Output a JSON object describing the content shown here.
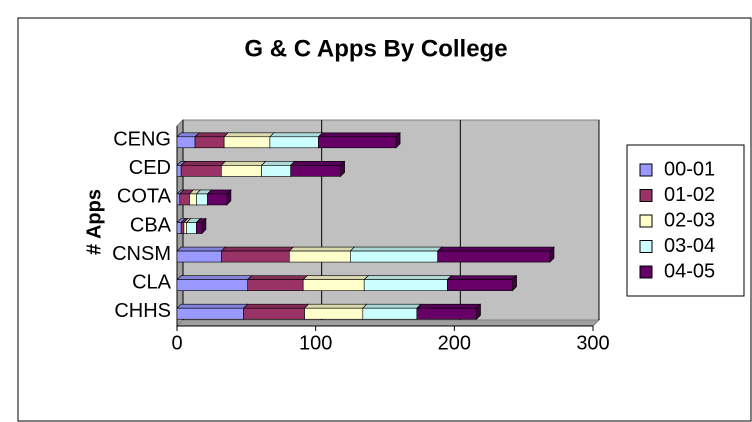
{
  "chart_data": {
    "type": "bar",
    "orientation": "horizontal",
    "stacked": true,
    "title": "G & C Apps  By College",
    "y_label": "# Apps",
    "categories": [
      "CHHS",
      "CLA",
      "CNSM",
      "CBA",
      "COTA",
      "CED",
      "CENG"
    ],
    "series": [
      {
        "name": "00-01",
        "color": "#9999ff",
        "values": [
          48,
          51,
          32,
          3,
          2,
          3,
          13
        ]
      },
      {
        "name": "01-02",
        "color": "#993366",
        "values": [
          44,
          40,
          49,
          2,
          7,
          29,
          21
        ]
      },
      {
        "name": "02-03",
        "color": "#ffffcc",
        "values": [
          42,
          44,
          44,
          2,
          5,
          29,
          33
        ]
      },
      {
        "name": "03-04",
        "color": "#ccffff",
        "values": [
          39,
          60,
          63,
          7,
          8,
          21,
          35
        ]
      },
      {
        "name": "04-05",
        "color": "#660066",
        "values": [
          43,
          47,
          81,
          4,
          14,
          36,
          56
        ]
      }
    ],
    "xlim": [
      0,
      300
    ],
    "xticks": [
      0,
      100,
      200,
      300
    ],
    "grid": true,
    "legend": "right"
  }
}
